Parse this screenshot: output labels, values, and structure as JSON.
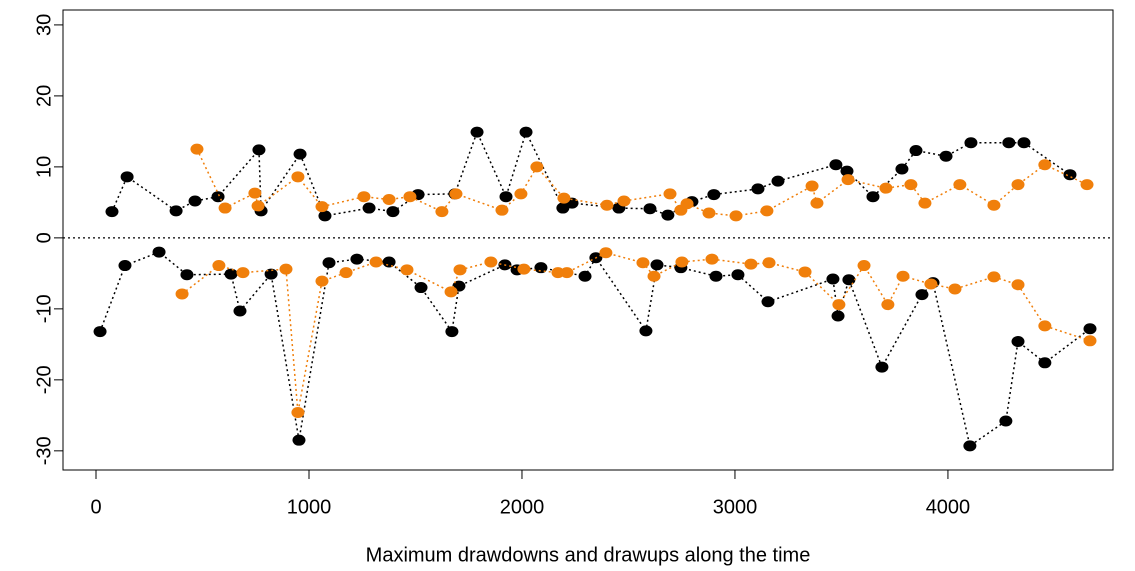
{
  "chart_data": {
    "type": "scatter",
    "x_label": "Maximum drawdowns and drawups along the time",
    "xlim": [
      -155,
      4775
    ],
    "ylim": [
      -32.7,
      32.1
    ],
    "xticks": [
      0,
      1000,
      2000,
      3000,
      4000
    ],
    "yticks": [
      -30,
      -20,
      -10,
      0,
      10,
      20,
      30
    ],
    "hline": 0,
    "series": [
      {
        "color": "#000000",
        "x": [
          75,
          146,
          376,
          465,
          573,
          765,
          775,
          958,
          1075,
          1282,
          1394,
          1512,
          1685,
          1789,
          1925,
          2019,
          2192,
          2235,
          2455,
          2601,
          2685,
          2798,
          2901,
          3108,
          3202,
          3474,
          3526,
          3648,
          3784,
          3850,
          3991,
          4108,
          4286,
          4357,
          4573
        ],
        "values": [
          3.7,
          8.6,
          3.8,
          5.2,
          5.8,
          12.4,
          3.8,
          11.8,
          3.1,
          4.2,
          3.7,
          6.1,
          6.2,
          14.9,
          5.8,
          14.9,
          4.2,
          4.9,
          4.2,
          4.1,
          3.2,
          5.1,
          6.1,
          6.9,
          8.0,
          10.3,
          9.4,
          5.8,
          9.7,
          12.3,
          11.5,
          13.4,
          13.4,
          13.4,
          8.9
        ]
      },
      {
        "color": "#000000",
        "x": [
          19,
          136,
          296,
          427,
          634,
          676,
          822,
          953,
          1094,
          1225,
          1376,
          1526,
          1671,
          1704,
          1920,
          1977,
          2089,
          2296,
          2347,
          2582,
          2634,
          2746,
          2911,
          3014,
          3155,
          3460,
          3484,
          3535,
          3690,
          3878,
          3930,
          4103,
          4272,
          4329,
          4455,
          4667
        ],
        "values": [
          -13.2,
          -3.9,
          -2.0,
          -5.2,
          -5.1,
          -10.3,
          -5.1,
          -28.5,
          -3.5,
          -3.0,
          -3.4,
          -7.0,
          -13.2,
          -6.8,
          -3.8,
          -4.5,
          -4.2,
          -5.4,
          -2.8,
          -13.1,
          -3.8,
          -4.2,
          -5.4,
          -5.2,
          -9.0,
          -5.8,
          -11.0,
          -5.9,
          -18.2,
          -8.0,
          -6.3,
          -29.3,
          -25.8,
          -14.6,
          -17.6,
          -12.8
        ]
      },
      {
        "color": "#f07f0b",
        "x": [
          474,
          606,
          746,
          761,
          948,
          1061,
          1258,
          1376,
          1474,
          1624,
          1690,
          1906,
          1995,
          2070,
          2197,
          2399,
          2479,
          2695,
          2746,
          2775,
          2878,
          3005,
          3150,
          3362,
          3385,
          3531,
          3709,
          3826,
          3892,
          4056,
          4216,
          4329,
          4455,
          4653
        ],
        "values": [
          12.5,
          4.2,
          6.3,
          4.5,
          8.6,
          4.4,
          5.8,
          5.4,
          5.8,
          3.7,
          6.2,
          3.9,
          6.2,
          10.0,
          5.6,
          4.6,
          5.2,
          6.2,
          3.9,
          4.8,
          3.5,
          3.1,
          3.8,
          7.3,
          4.9,
          8.2,
          7.0,
          7.5,
          4.9,
          7.5,
          4.6,
          7.5,
          10.3,
          7.5
        ]
      },
      {
        "color": "#f07f0b",
        "x": [
          404,
          577,
          690,
          892,
          948,
          1061,
          1174,
          1315,
          1460,
          1667,
          1709,
          1854,
          2009,
          2169,
          2211,
          2394,
          2568,
          2620,
          2751,
          2892,
          3075,
          3160,
          3329,
          3488,
          3606,
          3718,
          3789,
          3920,
          4033,
          4216,
          4329,
          4455,
          4667
        ],
        "values": [
          -7.9,
          -3.9,
          -4.9,
          -4.4,
          -24.6,
          -6.1,
          -4.9,
          -3.4,
          -4.5,
          -7.6,
          -4.5,
          -3.4,
          -4.4,
          -4.9,
          -4.9,
          -2.1,
          -3.5,
          -5.4,
          -3.4,
          -3.0,
          -3.7,
          -3.5,
          -4.8,
          -9.4,
          -3.9,
          -9.4,
          -5.4,
          -6.5,
          -7.2,
          -5.5,
          -6.6,
          -12.4,
          -14.5
        ]
      }
    ]
  }
}
